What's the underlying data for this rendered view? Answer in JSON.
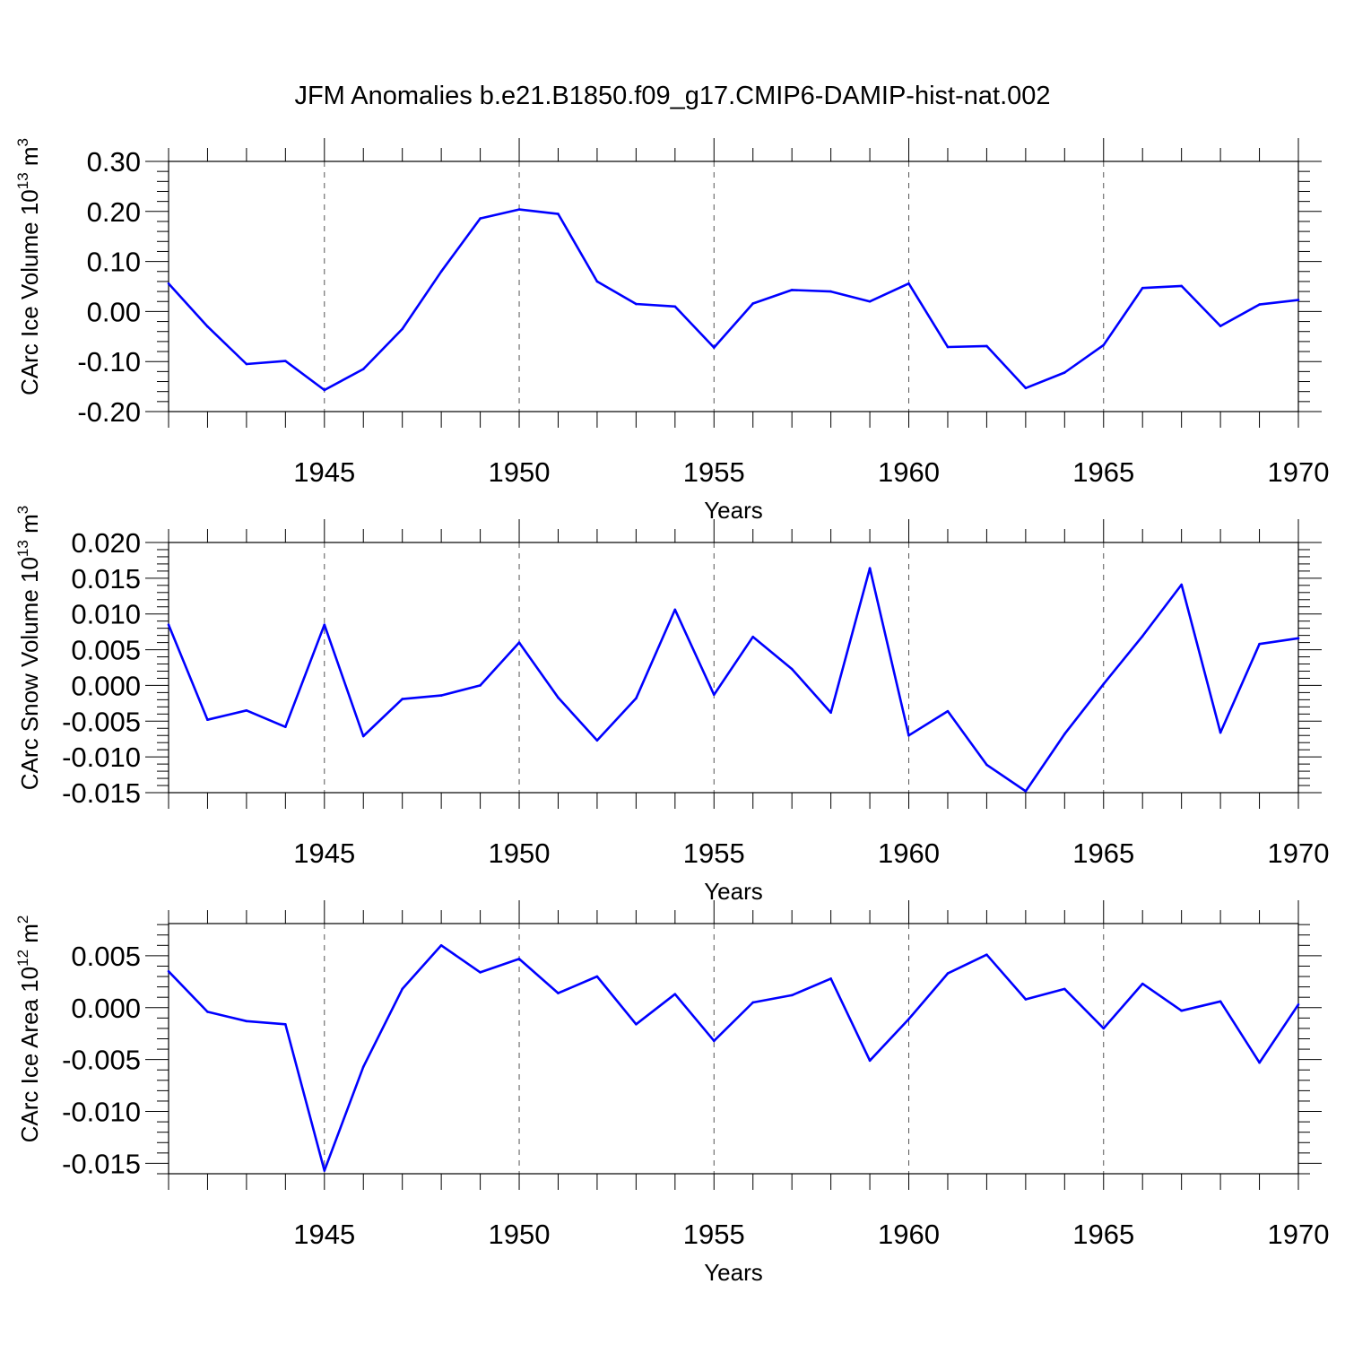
{
  "title": "JFM Anomalies b.e21.B1850.f09_g17.CMIP6-DAMIP-hist-nat.002",
  "colors": {
    "line": "#0000ff",
    "axis": "#000000",
    "grid": "#555555"
  },
  "chart_data": [
    {
      "type": "line",
      "ylabel_main": "CArc Ice Volume 10",
      "ylabel_exp": "13",
      "ylabel_unit": " m",
      "ylabel_unit_exp": "3",
      "xlabel": "Years",
      "xlim": [
        1941,
        1970
      ],
      "ylim": [
        -0.2,
        0.3
      ],
      "yticks": [
        0.3,
        0.2,
        0.1,
        0.0,
        -0.1,
        -0.2
      ],
      "ytick_labels": [
        "0.30",
        "0.20",
        "0.10",
        "0.00",
        "-0.10",
        "-0.20"
      ],
      "xticks": [
        1945,
        1950,
        1955,
        1960,
        1965,
        1970
      ],
      "xtick_labels": [
        "1945",
        "1950",
        "1955",
        "1960",
        "1965",
        "1970"
      ],
      "x": [
        1941,
        1942,
        1943,
        1944,
        1945,
        1946,
        1947,
        1948,
        1949,
        1950,
        1951,
        1952,
        1953,
        1954,
        1955,
        1956,
        1957,
        1958,
        1959,
        1960,
        1961,
        1962,
        1963,
        1964,
        1965,
        1966,
        1967,
        1968,
        1969,
        1970
      ],
      "values": [
        0.056,
        -0.03,
        -0.105,
        -0.099,
        -0.157,
        -0.115,
        -0.035,
        0.08,
        0.186,
        0.204,
        0.195,
        0.06,
        0.015,
        0.01,
        -0.072,
        0.016,
        0.043,
        0.04,
        0.02,
        0.056,
        -0.071,
        -0.069,
        -0.153,
        -0.122,
        -0.067,
        0.047,
        0.051,
        -0.029,
        0.014,
        0.023
      ]
    },
    {
      "type": "line",
      "ylabel_main": "CArc Snow Volume 10",
      "ylabel_exp": "13",
      "ylabel_unit": " m",
      "ylabel_unit_exp": "3",
      "xlabel": "Years",
      "xlim": [
        1941,
        1970
      ],
      "ylim": [
        -0.015,
        0.02
      ],
      "yticks": [
        0.02,
        0.015,
        0.01,
        0.005,
        0.0,
        -0.005,
        -0.01,
        -0.015
      ],
      "ytick_labels": [
        "0.020",
        "0.015",
        "0.010",
        "0.005",
        "0.000",
        "-0.005",
        "-0.010",
        "-0.015"
      ],
      "xticks": [
        1945,
        1950,
        1955,
        1960,
        1965,
        1970
      ],
      "xtick_labels": [
        "1945",
        "1950",
        "1955",
        "1960",
        "1965",
        "1970"
      ],
      "x": [
        1941,
        1942,
        1943,
        1944,
        1945,
        1946,
        1947,
        1948,
        1949,
        1950,
        1951,
        1952,
        1953,
        1954,
        1955,
        1956,
        1957,
        1958,
        1959,
        1960,
        1961,
        1962,
        1963,
        1964,
        1965,
        1966,
        1967,
        1968,
        1969,
        1970
      ],
      "values": [
        0.0085,
        -0.0048,
        -0.0035,
        -0.0058,
        0.0085,
        -0.0071,
        -0.0019,
        -0.0014,
        0.0,
        0.006,
        -0.0017,
        -0.0077,
        -0.0018,
        0.0106,
        -0.0013,
        0.0068,
        0.0023,
        -0.0038,
        0.0164,
        -0.007,
        -0.0036,
        -0.0111,
        -0.0148,
        -0.0068,
        0.0002,
        0.0069,
        0.0141,
        -0.0066,
        0.0058,
        0.0066
      ]
    },
    {
      "type": "line",
      "ylabel_main": "CArc Ice Area 10",
      "ylabel_exp": "12",
      "ylabel_unit": " m",
      "ylabel_unit_exp": "2",
      "xlabel": "Years",
      "xlim": [
        1941,
        1970
      ],
      "ylim": [
        -0.016,
        0.0081
      ],
      "yticks": [
        0.005,
        0.0,
        -0.005,
        -0.01,
        -0.015
      ],
      "ytick_labels": [
        "0.005",
        "0.000",
        "-0.005",
        "-0.010",
        "-0.015"
      ],
      "xticks": [
        1945,
        1950,
        1955,
        1960,
        1965,
        1970
      ],
      "xtick_labels": [
        "1945",
        "1950",
        "1955",
        "1960",
        "1965",
        "1970"
      ],
      "x": [
        1941,
        1942,
        1943,
        1944,
        1945,
        1946,
        1947,
        1948,
        1949,
        1950,
        1951,
        1952,
        1953,
        1954,
        1955,
        1956,
        1957,
        1958,
        1959,
        1960,
        1961,
        1962,
        1963,
        1964,
        1965,
        1966,
        1967,
        1968,
        1969,
        1970
      ],
      "values": [
        0.0035,
        -0.0004,
        -0.0013,
        -0.0016,
        -0.0157,
        -0.0057,
        0.0018,
        0.006,
        0.0034,
        0.0047,
        0.0014,
        0.003,
        -0.0016,
        0.0013,
        -0.0032,
        0.0005,
        0.0012,
        0.0028,
        -0.0051,
        -0.0011,
        0.0033,
        0.0051,
        0.0008,
        0.0018,
        -0.002,
        0.0023,
        -0.0003,
        0.0006,
        -0.0053,
        0.0003
      ]
    }
  ]
}
